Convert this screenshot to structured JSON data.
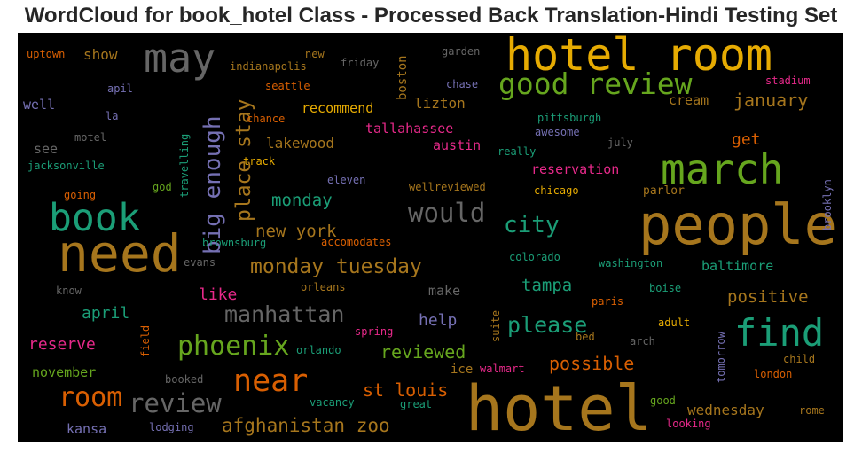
{
  "title": "WordCloud for book_hotel Class - Processed Back Translation-Hindi Testing Set",
  "chart_data": {
    "type": "wordcloud",
    "title": "WordCloud for book_hotel Class - Processed Back Translation-Hindi Testing Set",
    "background": "#000000",
    "palette": [
      "#1b9e77",
      "#d95f02",
      "#7570b3",
      "#e7298a",
      "#66a61e",
      "#e6ab02",
      "#a6761d",
      "#666666"
    ],
    "words": [
      {
        "text": "hotel",
        "weight": 1.0,
        "color": "#a6761d"
      },
      {
        "text": "people",
        "weight": 0.85,
        "color": "#a6761d"
      },
      {
        "text": "need",
        "weight": 0.83,
        "color": "#a6761d"
      },
      {
        "text": "hotel room",
        "weight": 0.72,
        "color": "#e6ab02"
      },
      {
        "text": "march",
        "weight": 0.66,
        "color": "#66a61e"
      },
      {
        "text": "may",
        "weight": 0.64,
        "color": "#666666"
      },
      {
        "text": "book",
        "weight": 0.62,
        "color": "#1b9e77"
      },
      {
        "text": "find",
        "weight": 0.6,
        "color": "#1b9e77"
      },
      {
        "text": "good review",
        "weight": 0.47,
        "color": "#66a61e"
      },
      {
        "text": "near",
        "weight": 0.5,
        "color": "#d95f02"
      },
      {
        "text": "phoenix",
        "weight": 0.43,
        "color": "#66a61e"
      },
      {
        "text": "room",
        "weight": 0.43,
        "color": "#d95f02"
      },
      {
        "text": "would",
        "weight": 0.42,
        "color": "#666666"
      },
      {
        "text": "review",
        "weight": 0.42,
        "color": "#666666"
      },
      {
        "text": "big enough",
        "weight": 0.37,
        "color": "#7570b3"
      },
      {
        "text": "city",
        "weight": 0.37,
        "color": "#1b9e77"
      },
      {
        "text": "manhattan",
        "weight": 0.36,
        "color": "#666666"
      },
      {
        "text": "please",
        "weight": 0.35,
        "color": "#1b9e77"
      },
      {
        "text": "place stay",
        "weight": 0.33,
        "color": "#a6761d"
      },
      {
        "text": "monday tuesday",
        "weight": 0.33,
        "color": "#a6761d"
      },
      {
        "text": "afghanistan zoo",
        "weight": 0.29,
        "color": "#a6761d"
      },
      {
        "text": "january",
        "weight": 0.28,
        "color": "#a6761d"
      },
      {
        "text": "st louis",
        "weight": 0.28,
        "color": "#d95f02"
      },
      {
        "text": "reviewed",
        "weight": 0.28,
        "color": "#66a61e"
      },
      {
        "text": "possible",
        "weight": 0.28,
        "color": "#d95f02"
      },
      {
        "text": "new york",
        "weight": 0.27,
        "color": "#a6761d"
      },
      {
        "text": "monday",
        "weight": 0.27,
        "color": "#1b9e77"
      },
      {
        "text": "tampa",
        "weight": 0.27,
        "color": "#1b9e77"
      },
      {
        "text": "positive",
        "weight": 0.27,
        "color": "#a6761d"
      },
      {
        "text": "help",
        "weight": 0.26,
        "color": "#7570b3"
      },
      {
        "text": "april",
        "weight": 0.26,
        "color": "#1b9e77"
      },
      {
        "text": "reserve",
        "weight": 0.26,
        "color": "#e7298a"
      },
      {
        "text": "like",
        "weight": 0.25,
        "color": "#e7298a"
      },
      {
        "text": "get",
        "weight": 0.25,
        "color": "#d95f02"
      },
      {
        "text": "wednesday",
        "weight": 0.23,
        "color": "#a6761d"
      },
      {
        "text": "show",
        "weight": 0.22,
        "color": "#a6761d"
      },
      {
        "text": "lizton",
        "weight": 0.22,
        "color": "#a6761d"
      },
      {
        "text": "lakewood",
        "weight": 0.22,
        "color": "#a6761d"
      },
      {
        "text": "austin",
        "weight": 0.22,
        "color": "#e7298a"
      },
      {
        "text": "baltimore",
        "weight": 0.22,
        "color": "#1b9e77"
      },
      {
        "text": "november",
        "weight": 0.21,
        "color": "#66a61e"
      },
      {
        "text": "kansa",
        "weight": 0.21,
        "color": "#7570b3"
      },
      {
        "text": "tallahassee",
        "weight": 0.2,
        "color": "#e7298a"
      },
      {
        "text": "recommend",
        "weight": 0.2,
        "color": "#e6ab02"
      },
      {
        "text": "reservation",
        "weight": 0.2,
        "color": "#e7298a"
      },
      {
        "text": "cream",
        "weight": 0.2,
        "color": "#a6761d"
      },
      {
        "text": "make",
        "weight": 0.2,
        "color": "#666666"
      },
      {
        "text": "well",
        "weight": 0.2,
        "color": "#7570b3"
      },
      {
        "text": "see",
        "weight": 0.2,
        "color": "#666666"
      },
      {
        "text": "boston",
        "weight": 0.19,
        "color": "#a6761d"
      },
      {
        "text": "ice",
        "weight": 0.19,
        "color": "#a6761d"
      },
      {
        "text": "parlor",
        "weight": 0.18,
        "color": "#a6761d"
      },
      {
        "text": "booked",
        "weight": 0.16,
        "color": "#666666"
      },
      {
        "text": "orlando",
        "weight": 0.16,
        "color": "#1b9e77"
      },
      {
        "text": "walmart",
        "weight": 0.16,
        "color": "#e7298a"
      },
      {
        "text": "suite",
        "weight": 0.16,
        "color": "#a6761d"
      },
      {
        "text": "field",
        "weight": 0.16,
        "color": "#d95f02"
      },
      {
        "text": "tomorrow",
        "weight": 0.16,
        "color": "#7570b3"
      },
      {
        "text": "brooklyn",
        "weight": 0.16,
        "color": "#7570b3"
      },
      {
        "text": "travelling",
        "weight": 0.16,
        "color": "#1b9e77"
      },
      {
        "text": "uptown",
        "weight": 0.15,
        "color": "#d95f02"
      },
      {
        "text": "new",
        "weight": 0.15,
        "color": "#a6761d"
      },
      {
        "text": "garden",
        "weight": 0.15,
        "color": "#666666"
      },
      {
        "text": "friday",
        "weight": 0.15,
        "color": "#666666"
      },
      {
        "text": "indianapolis",
        "weight": 0.15,
        "color": "#a6761d"
      },
      {
        "text": "chase",
        "weight": 0.15,
        "color": "#7570b3"
      },
      {
        "text": "stadium",
        "weight": 0.15,
        "color": "#e7298a"
      },
      {
        "text": "apil",
        "weight": 0.15,
        "color": "#7570b3"
      },
      {
        "text": "seattle",
        "weight": 0.15,
        "color": "#d95f02"
      },
      {
        "text": "la",
        "weight": 0.15,
        "color": "#7570b3"
      },
      {
        "text": "chance",
        "weight": 0.15,
        "color": "#d95f02"
      },
      {
        "text": "pittsburgh",
        "weight": 0.15,
        "color": "#1b9e77"
      },
      {
        "text": "awesome",
        "weight": 0.15,
        "color": "#7570b3"
      },
      {
        "text": "motel",
        "weight": 0.15,
        "color": "#666666"
      },
      {
        "text": "july",
        "weight": 0.15,
        "color": "#666666"
      },
      {
        "text": "really",
        "weight": 0.15,
        "color": "#1b9e77"
      },
      {
        "text": "track",
        "weight": 0.15,
        "color": "#e6ab02"
      },
      {
        "text": "jacksonville",
        "weight": 0.15,
        "color": "#1b9e77"
      },
      {
        "text": "god",
        "weight": 0.15,
        "color": "#66a61e"
      },
      {
        "text": "eleven",
        "weight": 0.15,
        "color": "#7570b3"
      },
      {
        "text": "going",
        "weight": 0.15,
        "color": "#d95f02"
      },
      {
        "text": "wellreviewed",
        "weight": 0.15,
        "color": "#a6761d"
      },
      {
        "text": "chicago",
        "weight": 0.15,
        "color": "#e6ab02"
      },
      {
        "text": "brownsburg",
        "weight": 0.15,
        "color": "#1b9e77"
      },
      {
        "text": "accomodates",
        "weight": 0.15,
        "color": "#d95f02"
      },
      {
        "text": "colorado",
        "weight": 0.15,
        "color": "#1b9e77"
      },
      {
        "text": "washington",
        "weight": 0.15,
        "color": "#1b9e77"
      },
      {
        "text": "evans",
        "weight": 0.15,
        "color": "#666666"
      },
      {
        "text": "know",
        "weight": 0.15,
        "color": "#666666"
      },
      {
        "text": "orleans",
        "weight": 0.15,
        "color": "#a6761d"
      },
      {
        "text": "boise",
        "weight": 0.15,
        "color": "#1b9e77"
      },
      {
        "text": "paris",
        "weight": 0.15,
        "color": "#d95f02"
      },
      {
        "text": "adult",
        "weight": 0.15,
        "color": "#e6ab02"
      },
      {
        "text": "spring",
        "weight": 0.15,
        "color": "#e7298a"
      },
      {
        "text": "bed",
        "weight": 0.15,
        "color": "#a6761d"
      },
      {
        "text": "arch",
        "weight": 0.15,
        "color": "#666666"
      },
      {
        "text": "child",
        "weight": 0.15,
        "color": "#a6761d"
      },
      {
        "text": "london",
        "weight": 0.15,
        "color": "#d95f02"
      },
      {
        "text": "vacancy",
        "weight": 0.15,
        "color": "#1b9e77"
      },
      {
        "text": "great",
        "weight": 0.15,
        "color": "#1b9e77"
      },
      {
        "text": "good",
        "weight": 0.15,
        "color": "#66a61e"
      },
      {
        "text": "rome",
        "weight": 0.15,
        "color": "#a6761d"
      },
      {
        "text": "looking",
        "weight": 0.15,
        "color": "#e7298a"
      },
      {
        "text": "lodging",
        "weight": 0.15,
        "color": "#7570b3"
      }
    ]
  }
}
